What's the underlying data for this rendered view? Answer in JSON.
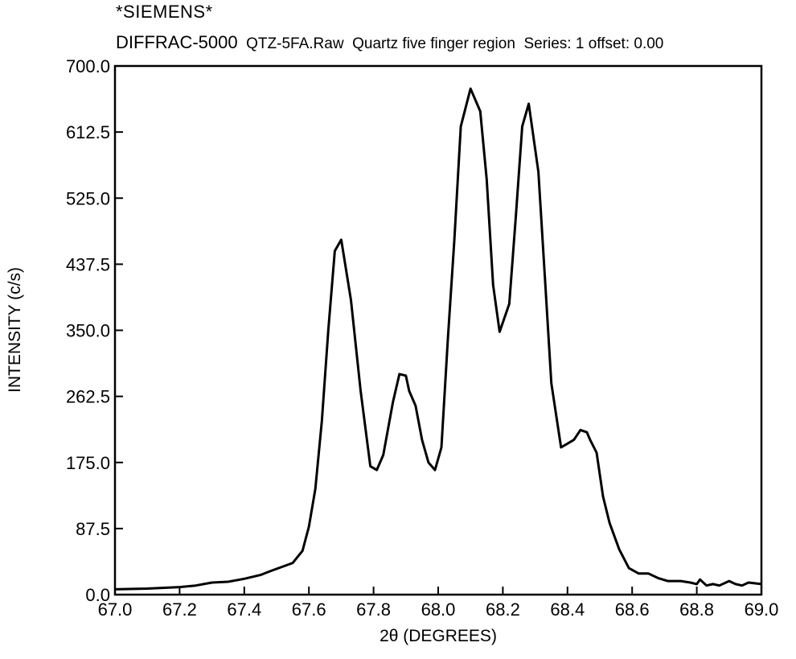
{
  "header": {
    "brand": "*SIEMENS*",
    "instrument": "DIFFRAC-5000",
    "file": "QTZ-5FA.Raw",
    "description": "Quartz five finger region",
    "series": "Series: 1 offset: 0.00"
  },
  "chart_data": {
    "type": "line",
    "title": "",
    "xlabel": "2θ (DEGREES)",
    "ylabel": "INTENSITY (c/s)",
    "xlim": [
      67.0,
      69.0
    ],
    "ylim": [
      0.0,
      700.0
    ],
    "x_ticks": [
      "67.0",
      "67.2",
      "67.4",
      "67.6",
      "67.8",
      "68.0",
      "68.2",
      "68.4",
      "68.6",
      "68.8",
      "69.0"
    ],
    "y_ticks": [
      "0.0",
      "87.5",
      "175.0",
      "262.5",
      "350.0",
      "437.5",
      "525.0",
      "612.5",
      "700.0"
    ],
    "grid": false,
    "legend": "none",
    "line_color": "#000000",
    "series": [
      {
        "x": [
          67.0,
          67.1,
          67.2,
          67.25,
          67.3,
          67.35,
          67.4,
          67.45,
          67.48,
          67.55,
          67.58,
          67.6,
          67.62,
          67.64,
          67.66,
          67.68,
          67.7,
          67.73,
          67.76,
          67.79,
          67.81,
          67.83,
          67.86,
          67.88,
          67.9,
          67.91,
          67.93,
          67.95,
          67.97,
          67.99,
          68.01,
          68.03,
          68.05,
          68.07,
          68.1,
          68.13,
          68.15,
          68.17,
          68.19,
          68.22,
          68.24,
          68.26,
          68.28,
          68.31,
          68.33,
          68.35,
          68.38,
          68.4,
          68.42,
          68.44,
          68.46,
          68.47,
          68.49,
          68.51,
          68.53,
          68.56,
          68.59,
          68.62,
          68.65,
          68.68,
          68.71,
          68.75,
          68.78,
          68.8,
          68.81,
          68.83,
          68.85,
          68.87,
          68.9,
          68.92,
          68.94,
          68.96,
          69.0
        ],
        "y": [
          7,
          8,
          10,
          12,
          16,
          17,
          21,
          26,
          31,
          42,
          58,
          90,
          140,
          230,
          350,
          455,
          470,
          390,
          270,
          170,
          165,
          185,
          255,
          292,
          290,
          270,
          250,
          205,
          175,
          165,
          195,
          340,
          470,
          620,
          670,
          640,
          550,
          410,
          348,
          385,
          500,
          620,
          650,
          560,
          420,
          280,
          195,
          200,
          205,
          218,
          215,
          205,
          188,
          130,
          95,
          60,
          35,
          28,
          28,
          22,
          18,
          18,
          16,
          14,
          20,
          12,
          14,
          12,
          18,
          14,
          12,
          16,
          14
        ]
      }
    ]
  }
}
